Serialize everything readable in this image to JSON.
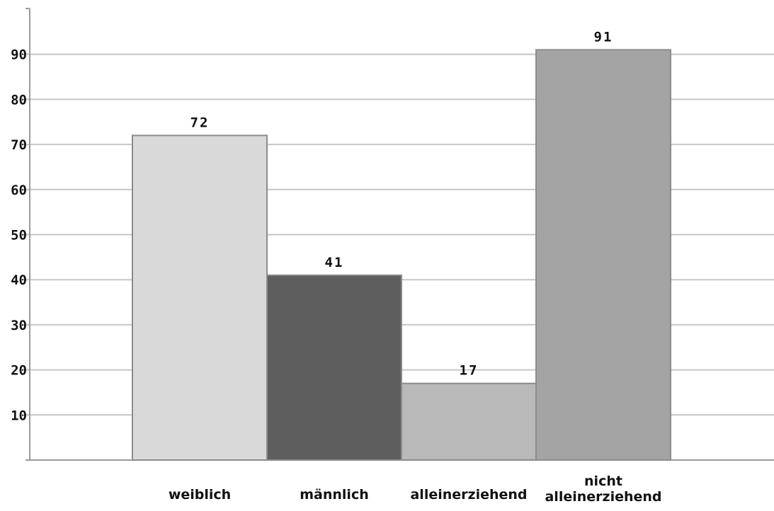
{
  "chart_data": {
    "type": "bar",
    "title": "",
    "xlabel": "",
    "ylabel": "",
    "ylim": [
      0,
      100
    ],
    "yticks": [
      10,
      20,
      30,
      40,
      50,
      60,
      70,
      80,
      90
    ],
    "grid": true,
    "legend": "none",
    "categories": [
      [
        "weiblich"
      ],
      [
        "männlich"
      ],
      [
        "alleinerziehend"
      ],
      [
        "nicht",
        "alleinerziehend"
      ]
    ],
    "values": [
      72,
      41,
      17,
      91
    ],
    "bar_colors": [
      "#d9d9d9",
      "#5e5e5e",
      "#b9b9b9",
      "#a4a4a4"
    ],
    "bar_edge_color": "#8c8c8c",
    "grid_color": "#c6c6c6",
    "axis_color": "#9a9a9a"
  }
}
